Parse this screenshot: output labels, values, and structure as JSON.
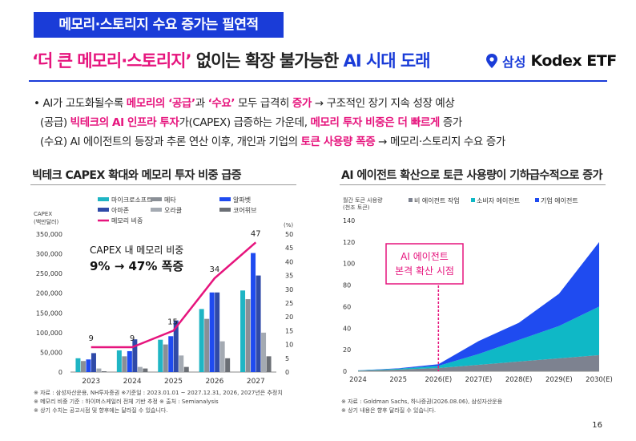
{
  "header": {
    "tag": "메모리·스토리지 수요 증가는 필연적",
    "headline_part1": "‘더 큰 메모리·스토리지’",
    "headline_part2": " 없이는 확장 불가능한 ",
    "headline_part3": "AI 시대 도래",
    "brand_samsung": "삼성",
    "brand_kodex": "Kodex ETF"
  },
  "bullets": {
    "b1": {
      "p1": "• AI가 고도화될수록 ",
      "m1": "메모리의 ‘공급’",
      "p2": "과 ",
      "m2": "‘수요’",
      "p3": " 모두 급격히 ",
      "m3": "증가",
      "p4": " → 구조적인 장기 지속 성장 예상"
    },
    "b2": {
      "p1": "(공급) ",
      "m1": "빅테크의 AI 인프라 투자",
      "p2": "가(CAPEX) 급증하는 가운데, ",
      "m2": "메모리 투자 비중은 더 빠르게",
      "p3": " 증가"
    },
    "b3": {
      "p1": "(수요) AI 에이전트의 등장과 추론 연산 이후, 개인과 기업의 ",
      "m1": "토큰 사용량 폭증",
      "p2": " → 메모리·스토리지 수요 증가"
    }
  },
  "left_chart": {
    "title": "빅테크 CAPEX 확대와 메모리 투자 비중 급증",
    "left_axis_title": [
      "CAPEX",
      "(백만달러)"
    ],
    "right_axis_title": "(%)",
    "callout_line1": "CAPEX 내 메모리 비중",
    "callout_line2": "9% → 47% 폭증",
    "notes": [
      "※ 자료 : 삼성자산운용, NH투자증권 ※기준일 : 2023.01.01 ~ 2027.12.31, 2026, 2027년은 추정치",
      "※ 메모리 비중 기준 : 하이퍼스케일러 전체 기반 추정 ※ 출처 : Semianalysis",
      "※ 상기 수치는 공고시점 및 향후에는 달라질 수 있습니다."
    ]
  },
  "right_chart": {
    "title": "AI 에이전트 확산으로 토큰 사용량이 기하급수적으로 증가",
    "y_axis_title": [
      "월간 토큰 사용량",
      "(천조 토큰)"
    ],
    "callout_line1": "AI 에이전트",
    "callout_line2": "본격 확산 시점",
    "notes": [
      "※ 자료 : Goldman Sachs, 하나증권(2026.08.06), 삼성자산운용",
      "※ 상기 내용은 향후 달라질 수 있습니다."
    ]
  },
  "page_number": "16",
  "colors": {
    "blue": "#1a3cd8",
    "pink": "#e6147d",
    "microsoft": "#1fb5c4",
    "meta": "#8a8f96",
    "alphabet": "#1f4bf0",
    "amazon": "#2f4aa8",
    "oracle": "#a4aab2",
    "coreweave": "#6b6f75",
    "non_agent": "#7d8290",
    "consumer_agent": "#0fb8c6",
    "enterprise_agent": "#1f4bf0"
  },
  "chart_data": [
    {
      "type": "bar",
      "title": "빅테크 CAPEX 확대와 메모리 투자 비중 급증",
      "categories": [
        "2023",
        "2024",
        "2025",
        "2026",
        "2027"
      ],
      "ylabel": "CAPEX (백만달러)",
      "ylim": [
        0,
        350000
      ],
      "yticks": [
        "0",
        "50,000",
        "100,000",
        "150,000",
        "200,000",
        "250,000",
        "300,000",
        "350,000"
      ],
      "y2label": "(%)",
      "y2lim": [
        0,
        50
      ],
      "y2ticks": [
        "0",
        "5",
        "10",
        "15",
        "20",
        "25",
        "30",
        "35",
        "40",
        "45",
        "50"
      ],
      "series": [
        {
          "name": "마이크로소프트",
          "values": [
            35000,
            55000,
            82000,
            160000,
            207000
          ]
        },
        {
          "name": "메타",
          "values": [
            28000,
            40000,
            70000,
            135000,
            185000
          ]
        },
        {
          "name": "알파벳",
          "values": [
            32000,
            53000,
            91000,
            202000,
            302000
          ]
        },
        {
          "name": "아마존",
          "values": [
            48000,
            83000,
            131000,
            202000,
            245000
          ]
        },
        {
          "name": "오라클",
          "values": [
            9000,
            13000,
            42000,
            78000,
            100000
          ]
        },
        {
          "name": "코어위브",
          "values": [
            2000,
            9000,
            13000,
            35000,
            40000
          ]
        }
      ],
      "line_series": {
        "name": "메모리 비중",
        "axis": "right",
        "values": [
          9,
          9,
          15,
          34,
          47
        ],
        "labels": [
          "9",
          "9",
          "15",
          "34",
          "47"
        ]
      },
      "legend_position": "top",
      "grid": false
    },
    {
      "type": "area",
      "stacked": true,
      "title": "AI 에이전트 확산으로 토큰 사용량이 기하급수적으로 증가",
      "x": [
        "2024",
        "2025",
        "2026(E)",
        "2027(E)",
        "2028(E)",
        "2029(E)",
        "2030(E)"
      ],
      "ylabel": "월간 토큰 사용량 (천조 토큰)",
      "ylim": [
        0,
        140
      ],
      "yticks": [
        "0",
        "20",
        "40",
        "60",
        "80",
        "100",
        "120",
        "140"
      ],
      "series": [
        {
          "name": "비 에이전트 작업",
          "values": [
            0.5,
            1.5,
            3,
            6,
            9,
            12,
            15
          ]
        },
        {
          "name": "소비자 에이전트",
          "values": [
            0.2,
            0.8,
            2,
            10,
            20,
            30,
            45
          ]
        },
        {
          "name": "기업 에이전트",
          "values": [
            0.1,
            0.4,
            1.5,
            12,
            16,
            30,
            60
          ]
        }
      ],
      "annotation": {
        "x": "2026(E)",
        "text": "AI 에이전트 본격 확산 시점"
      },
      "legend_position": "top",
      "grid": false
    }
  ]
}
